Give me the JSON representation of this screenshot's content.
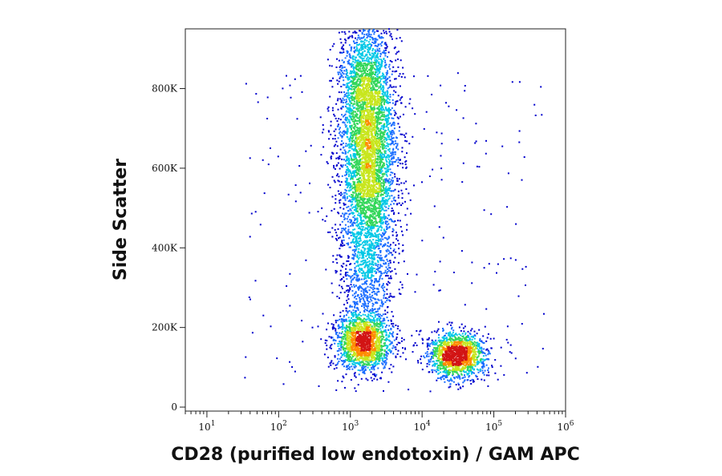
{
  "chart_data": {
    "type": "scatter",
    "plot_style": "density-colored flow cytometry dot plot",
    "xlabel": "CD28 (purified low endotoxin) / GAM APC",
    "ylabel": "Side Scatter",
    "x_scale": "log",
    "xlim": [
      5,
      1000000
    ],
    "ylim": [
      -10000,
      950000
    ],
    "x_ticks": [
      {
        "value": 10,
        "base": "10",
        "exp": "1"
      },
      {
        "value": 100,
        "base": "10",
        "exp": "2"
      },
      {
        "value": 1000,
        "base": "10",
        "exp": "3"
      },
      {
        "value": 10000,
        "base": "10",
        "exp": "4"
      },
      {
        "value": 100000,
        "base": "10",
        "exp": "5"
      },
      {
        "value": 1000000,
        "base": "10",
        "exp": "6"
      }
    ],
    "y_ticks": [
      {
        "value": 0,
        "label": "0"
      },
      {
        "value": 200000,
        "label": "200K"
      },
      {
        "value": 400000,
        "label": "400K"
      },
      {
        "value": 600000,
        "label": "600K"
      },
      {
        "value": 800000,
        "label": "800K"
      }
    ],
    "grid": false,
    "density_colors": [
      "#0000cc",
      "#1a6dff",
      "#00c8e6",
      "#33d65a",
      "#c8e61e",
      "#ff8c00",
      "#d21414"
    ],
    "populations": [
      {
        "x_center": 1800,
        "y_center": 620000,
        "x_log_spread": 0.2,
        "y_spread": 150000,
        "count": 4200
      },
      {
        "x_center": 1600,
        "y_center": 820000,
        "x_log_spread": 0.18,
        "y_spread": 80000,
        "count": 900
      },
      {
        "x_center": 1500,
        "y_center": 160000,
        "x_log_spread": 0.2,
        "y_spread": 35000,
        "count": 1600
      },
      {
        "x_center": 30000,
        "y_center": 130000,
        "x_log_spread": 0.2,
        "y_spread": 28000,
        "count": 1500
      },
      {
        "x_center": 1700,
        "y_center": 300000,
        "x_log_spread": 0.2,
        "y_spread": 70000,
        "count": 500
      }
    ]
  }
}
